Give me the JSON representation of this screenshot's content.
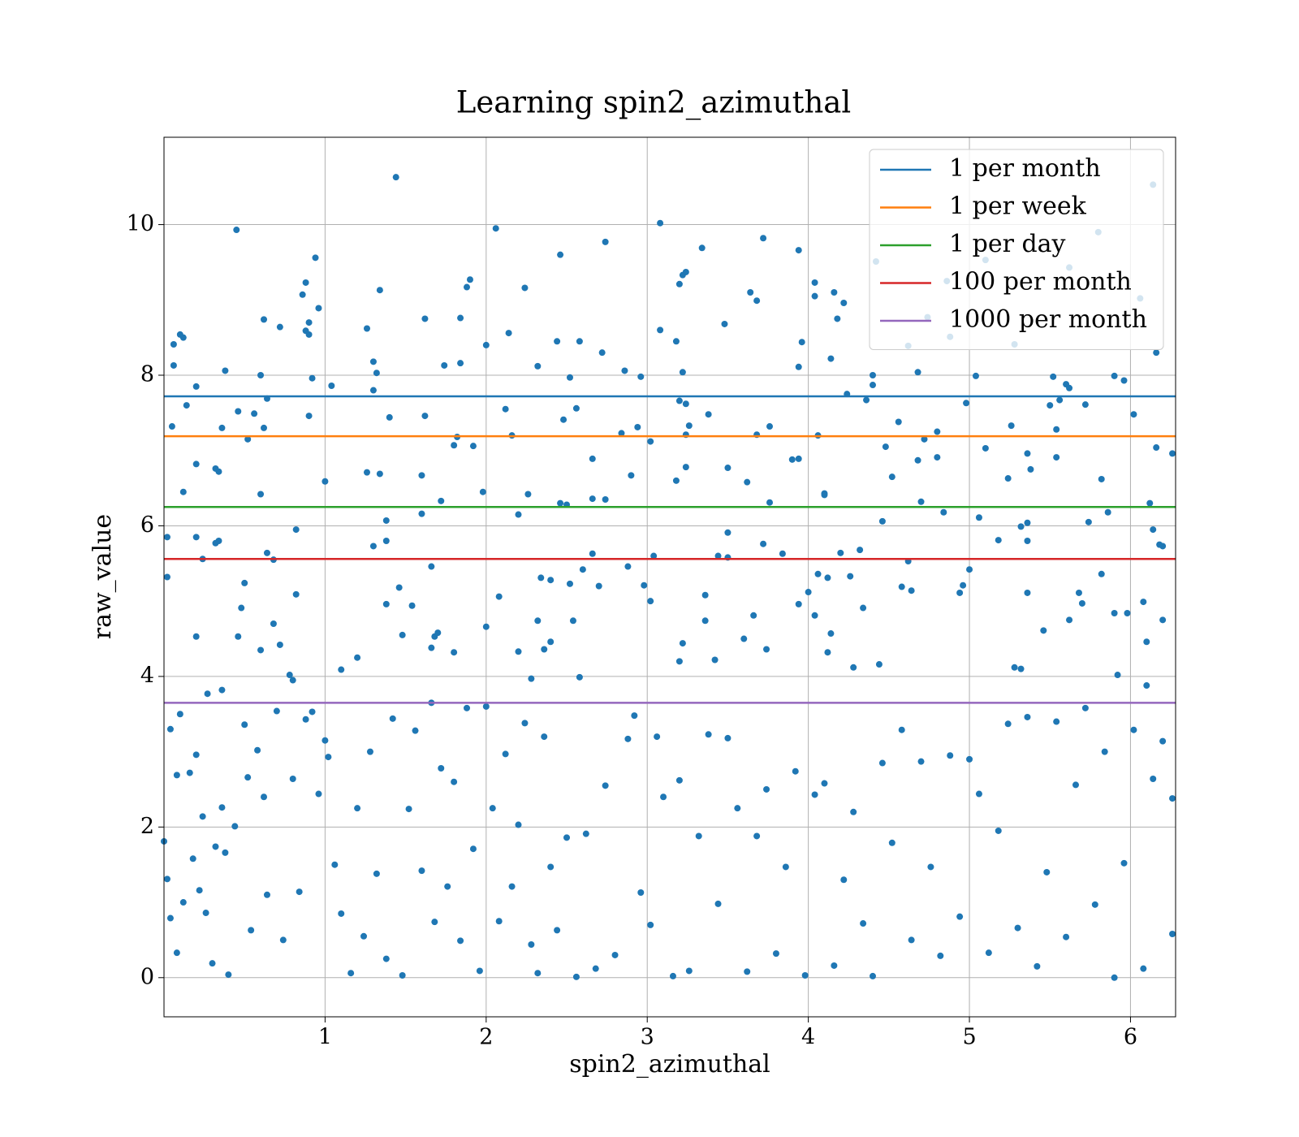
{
  "chart_data": {
    "type": "scatter",
    "title": "Learning spin2_azimuthal",
    "x_label": "spin2_azimuthal",
    "y_label": "raw_value",
    "color": "#1f77b4",
    "grid": true,
    "legend": "upper right",
    "xlim": [
      0,
      6.28
    ],
    "xticks": [
      1,
      2,
      3,
      4,
      5,
      6
    ],
    "ylim": [
      -0.52,
      11.16
    ],
    "yticks": [
      0,
      2,
      4,
      6,
      8,
      10
    ],
    "lines": [
      {
        "name": "1 per month",
        "color": "#1f77b4",
        "value": 7.72
      },
      {
        "name": "1 per week",
        "color": "#ff7f0e",
        "value": 7.19
      },
      {
        "name": "1 per day",
        "color": "#2ca02c",
        "value": 6.25
      },
      {
        "name": "100 per month",
        "color": "#d62728",
        "value": 5.56
      },
      {
        "name": "1000 per month",
        "color": "#9467bd",
        "value": 3.65
      }
    ],
    "x": [
      0.02,
      0.02,
      0.05,
      0.06,
      0.06,
      0.1,
      0.12,
      0.14,
      0.12,
      0.2,
      0.2,
      0.2,
      0.24,
      0.2,
      0.27,
      0.32,
      0.34,
      0.32,
      0.34,
      0.36,
      0.38,
      0.36,
      0.45,
      0.46,
      0.46,
      0.48,
      0.5,
      0.52,
      0.56,
      0.6,
      0.6,
      0.6,
      0.62,
      0.62,
      0.64,
      0.64,
      0.68,
      0.68,
      0.72,
      0.72,
      0.78,
      0.8,
      0.82,
      0.82,
      0.86,
      0.88,
      0.88,
      0.9,
      0.9,
      0.92,
      0.9,
      0.94,
      0.96,
      1.0,
      1.04,
      1.1,
      1.2,
      1.26,
      1.26,
      1.3,
      1.3,
      1.32,
      1.3,
      1.34,
      1.34,
      1.38,
      1.38,
      1.38,
      1.4,
      1.44,
      1.46,
      1.48,
      1.54,
      1.6,
      1.6,
      1.62,
      1.62,
      1.66,
      1.66,
      1.68,
      1.7,
      1.72,
      1.74,
      1.8,
      1.82,
      1.84,
      1.84,
      1.8,
      1.88,
      1.9,
      1.92,
      1.98,
      2.0,
      2.0,
      2.06,
      2.08,
      2.12,
      2.14,
      2.16,
      2.2,
      2.2,
      2.24,
      2.26,
      2.28,
      2.32,
      2.32,
      2.34,
      2.36,
      2.4,
      2.4,
      2.44,
      2.46,
      2.46,
      2.48,
      2.5,
      2.52,
      2.52,
      2.54,
      2.56,
      2.58,
      2.6,
      2.58,
      2.66,
      2.66,
      2.66,
      2.7,
      2.72,
      2.74,
      2.74,
      2.84,
      2.86,
      2.88,
      2.9,
      2.94,
      2.96,
      2.98,
      3.02,
      3.02,
      3.04,
      3.08,
      3.08,
      3.18,
      3.2,
      3.22,
      3.24,
      3.2,
      3.24,
      3.22,
      3.24,
      3.26,
      3.18,
      3.24,
      3.2,
      3.22,
      3.34,
      3.36,
      3.36,
      3.38,
      3.44,
      3.42,
      3.48,
      3.5,
      3.5,
      3.5,
      3.62,
      3.6,
      3.64,
      3.66,
      3.68,
      3.68,
      3.72,
      3.72,
      3.74,
      3.76,
      3.76,
      3.84,
      3.9,
      3.94,
      3.94,
      3.96,
      3.94,
      3.94,
      4.0,
      4.04,
      4.04,
      4.06,
      4.06,
      4.04,
      4.1,
      4.1,
      4.12,
      4.12,
      4.14,
      4.14,
      4.16,
      4.18,
      4.2,
      4.22,
      4.24,
      4.26,
      4.28,
      4.32,
      4.34,
      4.36,
      4.4,
      4.4,
      4.42,
      4.44,
      4.46,
      4.48,
      4.52,
      4.56,
      4.58,
      4.62,
      4.62,
      4.64,
      4.68,
      4.68,
      4.7,
      4.74,
      4.72,
      4.8,
      4.8,
      4.84,
      4.86,
      4.88,
      4.94,
      4.96,
      4.98,
      5.0,
      5.04,
      5.06,
      5.1,
      5.1,
      5.18,
      5.24,
      5.26,
      5.28,
      5.28,
      5.32,
      5.32,
      5.36,
      5.36,
      5.36,
      5.38,
      5.36,
      5.46,
      5.5,
      5.52,
      5.54,
      5.54,
      5.56,
      5.6,
      5.62,
      5.62,
      5.62,
      5.68,
      5.7,
      5.72,
      5.74,
      5.8,
      5.82,
      5.82,
      5.86,
      5.9,
      5.9,
      5.92,
      5.96,
      5.98,
      6.02,
      6.06,
      6.08,
      6.1,
      6.1,
      6.12,
      6.14,
      6.16,
      6.16,
      6.14,
      6.18,
      6.2,
      6.2,
      6.26,
      0.0,
      0.02,
      0.04,
      0.04,
      0.08,
      0.1,
      0.08,
      0.12,
      0.16,
      0.18,
      0.2,
      0.22,
      0.24,
      0.26,
      0.3,
      0.32,
      0.36,
      0.38,
      0.4,
      0.44,
      0.5,
      0.52,
      0.54,
      0.58,
      0.62,
      0.64,
      0.7,
      0.74,
      0.8,
      0.84,
      0.88,
      0.92,
      0.96,
      1.0,
      1.02,
      1.06,
      1.1,
      1.16,
      1.2,
      1.24,
      1.28,
      1.32,
      1.38,
      1.42,
      1.48,
      1.52,
      1.56,
      1.6,
      1.66,
      1.68,
      1.72,
      1.76,
      1.8,
      1.84,
      1.88,
      1.92,
      1.96,
      2.0,
      2.04,
      2.08,
      2.12,
      2.16,
      2.2,
      2.24,
      2.28,
      2.32,
      2.36,
      2.4,
      2.44,
      2.5,
      2.56,
      2.62,
      2.68,
      2.74,
      2.8,
      2.88,
      2.92,
      2.96,
      3.02,
      3.06,
      3.1,
      3.16,
      3.2,
      3.26,
      3.32,
      3.38,
      3.44,
      3.5,
      3.56,
      3.62,
      3.68,
      3.74,
      3.8,
      3.86,
      3.92,
      3.98,
      4.04,
      4.1,
      4.16,
      4.22,
      4.28,
      4.34,
      4.4,
      4.46,
      4.52,
      4.58,
      4.64,
      4.7,
      4.76,
      4.82,
      4.88,
      4.94,
      5.0,
      5.06,
      5.12,
      5.18,
      5.24,
      5.3,
      5.36,
      5.42,
      5.48,
      5.54,
      5.6,
      5.66,
      5.72,
      5.78,
      5.84,
      5.9,
      5.96,
      6.02,
      6.08,
      6.14,
      6.2,
      6.26,
      6.26
    ],
    "values": [
      5.85,
      5.32,
      7.32,
      8.13,
      8.41,
      8.54,
      8.5,
      7.6,
      6.45,
      7.85,
      6.82,
      5.85,
      5.56,
      4.53,
      3.77,
      5.77,
      5.8,
      6.76,
      6.72,
      7.3,
      8.06,
      3.82,
      9.93,
      7.52,
      4.53,
      4.91,
      5.24,
      7.15,
      7.49,
      8.0,
      6.42,
      4.35,
      7.3,
      8.74,
      7.69,
      5.64,
      5.55,
      4.7,
      8.64,
      4.42,
      4.02,
      3.95,
      5.09,
      5.95,
      9.07,
      9.23,
      8.59,
      8.7,
      8.54,
      7.96,
      7.46,
      9.56,
      8.89,
      6.59,
      7.86,
      4.09,
      4.25,
      8.62,
      6.71,
      8.18,
      7.8,
      8.03,
      5.73,
      9.13,
      6.69,
      6.07,
      5.8,
      4.96,
      7.44,
      10.63,
      5.18,
      4.55,
      4.94,
      6.16,
      6.67,
      7.46,
      8.75,
      5.46,
      4.38,
      4.53,
      4.58,
      6.33,
      8.13,
      7.07,
      7.18,
      8.16,
      8.76,
      4.32,
      9.17,
      9.27,
      7.06,
      6.45,
      8.4,
      4.66,
      9.95,
      5.06,
      7.55,
      8.56,
      7.2,
      6.15,
      4.33,
      9.16,
      6.42,
      3.97,
      8.12,
      4.74,
      5.31,
      4.36,
      5.28,
      4.46,
      8.45,
      9.6,
      6.3,
      7.41,
      6.28,
      5.23,
      7.97,
      4.74,
      7.56,
      8.45,
      5.42,
      3.99,
      6.36,
      5.63,
      6.89,
      5.2,
      8.3,
      9.77,
      6.35,
      7.23,
      8.06,
      5.46,
      6.67,
      7.31,
      7.98,
      5.21,
      7.12,
      5.0,
      5.6,
      10.02,
      8.6,
      8.45,
      9.21,
      9.33,
      9.37,
      7.66,
      7.62,
      8.04,
      7.21,
      7.33,
      6.6,
      6.78,
      4.2,
      4.44,
      9.69,
      5.08,
      4.74,
      7.48,
      5.6,
      4.22,
      8.68,
      6.77,
      5.91,
      5.58,
      6.58,
      4.5,
      9.1,
      4.81,
      8.99,
      7.21,
      9.82,
      5.76,
      4.36,
      6.31,
      7.32,
      5.63,
      6.88,
      9.66,
      8.11,
      8.44,
      6.89,
      4.96,
      5.12,
      9.23,
      9.05,
      7.2,
      5.36,
      4.81,
      6.43,
      6.41,
      5.31,
      4.32,
      8.22,
      4.57,
      9.1,
      8.75,
      5.64,
      8.96,
      7.75,
      5.33,
      4.12,
      5.68,
      4.91,
      7.67,
      7.87,
      8.0,
      9.51,
      4.16,
      6.06,
      7.05,
      6.65,
      7.38,
      5.19,
      8.39,
      5.53,
      5.14,
      8.04,
      6.87,
      6.32,
      8.77,
      7.15,
      7.25,
      6.91,
      6.18,
      9.25,
      8.51,
      5.11,
      5.21,
      7.63,
      5.42,
      7.99,
      6.11,
      9.53,
      7.03,
      5.81,
      6.63,
      7.33,
      8.41,
      4.12,
      4.1,
      5.99,
      6.96,
      6.04,
      5.8,
      6.75,
      5.11,
      4.61,
      7.6,
      7.98,
      7.28,
      6.91,
      7.67,
      7.88,
      7.83,
      9.43,
      4.75,
      5.11,
      4.97,
      7.61,
      6.05,
      9.9,
      6.62,
      5.36,
      6.18,
      7.99,
      4.84,
      4.02,
      7.93,
      4.84,
      7.48,
      9.02,
      4.99,
      4.46,
      3.88,
      6.3,
      5.95,
      8.3,
      7.04,
      10.53,
      5.75,
      5.73,
      4.75,
      6.96,
      1.81,
      1.31,
      3.3,
      0.79,
      2.69,
      3.5,
      0.33,
      1.0,
      2.72,
      1.58,
      2.96,
      1.16,
      2.14,
      0.86,
      0.19,
      1.74,
      2.26,
      1.66,
      0.04,
      2.01,
      3.36,
      2.66,
      0.63,
      3.02,
      2.4,
      1.1,
      3.54,
      0.5,
      2.64,
      1.14,
      3.43,
      3.53,
      2.44,
      3.15,
      2.93,
      1.5,
      0.85,
      0.06,
      2.25,
      0.55,
      3.0,
      1.38,
      0.25,
      3.44,
      0.03,
      2.24,
      3.28,
      1.42,
      3.65,
      0.74,
      2.78,
      1.21,
      2.6,
      0.49,
      3.58,
      1.71,
      0.09,
      3.6,
      2.25,
      0.75,
      2.97,
      1.21,
      2.03,
      3.38,
      0.44,
      0.06,
      3.2,
      1.47,
      0.63,
      1.86,
      0.01,
      1.91,
      0.12,
      2.55,
      0.3,
      3.17,
      3.48,
      1.13,
      0.7,
      3.2,
      2.4,
      0.02,
      2.62,
      0.09,
      1.88,
      3.23,
      0.98,
      3.18,
      2.25,
      0.08,
      1.88,
      2.5,
      0.32,
      1.47,
      2.74,
      0.03,
      2.43,
      2.58,
      0.16,
      1.3,
      2.2,
      0.72,
      0.02,
      2.85,
      1.79,
      3.29,
      0.5,
      2.87,
      1.47,
      0.29,
      2.95,
      0.81,
      2.9,
      2.44,
      0.33,
      1.95,
      3.37,
      0.66,
      3.46,
      0.15,
      1.4,
      3.4,
      0.54,
      2.56,
      3.58,
      0.97,
      3.0,
      0.0,
      1.52,
      3.29,
      0.12,
      2.64,
      3.14,
      0.58,
      2.38
    ]
  }
}
